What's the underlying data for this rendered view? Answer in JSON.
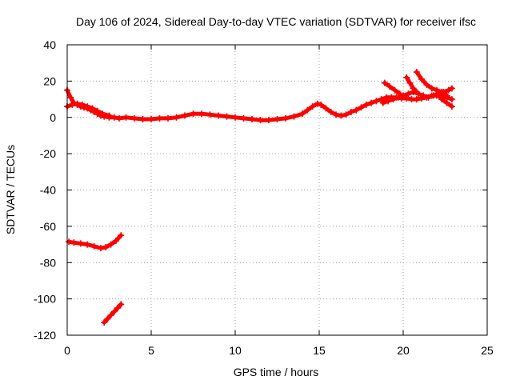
{
  "chart_data": {
    "type": "scatter",
    "title": "Day 106 of 2024, Sidereal Day-to-day VTEC variation (SDTVAR) for receiver ifsc",
    "xlabel": "GPS time / hours",
    "ylabel": "SDTVAR / TECUs",
    "xlim": [
      0,
      25
    ],
    "ylim": [
      -120,
      40
    ],
    "xticks": [
      0,
      5,
      10,
      15,
      20,
      25
    ],
    "yticks": [
      -120,
      -100,
      -80,
      -60,
      -40,
      -20,
      0,
      20,
      40
    ],
    "grid": true,
    "legend": "none",
    "marker": "plus",
    "color": "#ff0000",
    "series": [
      {
        "name": "main-band-a",
        "x": [
          0.0,
          0.2,
          0.4,
          0.6,
          0.8,
          1.0,
          1.2,
          1.4,
          1.6,
          1.8,
          2.0,
          2.2,
          2.5,
          2.8,
          3.1,
          3.5,
          4.0,
          4.5,
          5.0,
          5.5,
          6.0,
          6.5,
          7.0,
          7.5,
          8.0,
          8.5,
          9.0,
          9.5,
          10.0,
          10.5,
          11.0,
          11.5,
          12.0,
          12.5,
          13.0,
          13.5,
          14.0,
          14.3,
          14.6,
          14.9,
          15.1,
          15.4,
          15.7,
          16.0,
          16.3,
          16.6,
          16.9,
          17.2,
          17.5,
          17.8,
          18.1,
          18.4,
          18.7,
          19.0,
          19.3,
          19.6,
          19.9,
          20.2,
          20.5,
          20.8,
          21.1,
          21.4,
          21.7,
          22.0,
          22.3,
          22.6,
          22.9
        ],
        "y": [
          15,
          11,
          8,
          7,
          6,
          5.5,
          5,
          4,
          3,
          2,
          1,
          0.5,
          0,
          0,
          -0.5,
          0,
          -0.5,
          -1,
          -1,
          -0.5,
          -0.5,
          0,
          1,
          2,
          2,
          1.5,
          1,
          0.5,
          0,
          -0.5,
          -1,
          -1.5,
          -1.5,
          -1,
          -0.5,
          0.5,
          2,
          4,
          6,
          7.5,
          7,
          5,
          3,
          1.5,
          1,
          1.5,
          3,
          4,
          5.5,
          7,
          8,
          9,
          10,
          11,
          11,
          11,
          10.5,
          10.5,
          10,
          10,
          10.5,
          11,
          12,
          12,
          11.5,
          11,
          10
        ]
      },
      {
        "name": "main-band-b",
        "x": [
          0.0,
          0.3,
          0.6,
          0.9,
          1.2,
          1.5,
          1.8,
          2.1,
          2.5
        ],
        "y": [
          6,
          7,
          7.5,
          7,
          6,
          5,
          3.5,
          2,
          1
        ]
      },
      {
        "name": "main-band-c",
        "x": [
          18.8,
          19.1,
          19.4,
          19.7,
          20.0,
          20.3,
          20.6,
          20.9,
          21.2,
          21.5,
          21.8,
          22.1,
          22.4,
          22.7,
          22.9
        ],
        "y": [
          8,
          9,
          10,
          11,
          12,
          13,
          14,
          13,
          12,
          11,
          12,
          13,
          14,
          15,
          16
        ]
      },
      {
        "name": "main-band-d",
        "x": [
          18.9,
          19.2,
          19.5,
          19.8
        ],
        "y": [
          19,
          17,
          15,
          13
        ]
      },
      {
        "name": "main-band-e",
        "x": [
          20.2,
          20.4,
          20.6,
          20.8
        ],
        "y": [
          22,
          19,
          16,
          14
        ]
      },
      {
        "name": "main-band-f",
        "x": [
          20.8,
          21.1,
          21.4,
          21.7,
          22.0,
          22.3,
          22.6
        ],
        "y": [
          25,
          21,
          18,
          16,
          15,
          14,
          12
        ]
      },
      {
        "name": "main-band-g",
        "x": [
          22.0,
          22.3,
          22.6,
          22.9
        ],
        "y": [
          13,
          10,
          8,
          6
        ]
      },
      {
        "name": "negative-arc",
        "x": [
          0.1,
          0.4,
          0.8,
          1.2,
          1.6,
          2.0,
          2.3,
          2.6,
          2.9,
          3.2
        ],
        "y": [
          -68.5,
          -69,
          -69.5,
          -70,
          -71,
          -72,
          -71.5,
          -70,
          -68,
          -65
        ]
      },
      {
        "name": "negative-tail",
        "x": [
          2.2,
          2.4,
          2.6,
          2.8,
          3.0,
          3.2
        ],
        "y": [
          -113,
          -111,
          -109,
          -107,
          -105,
          -103
        ]
      }
    ]
  }
}
